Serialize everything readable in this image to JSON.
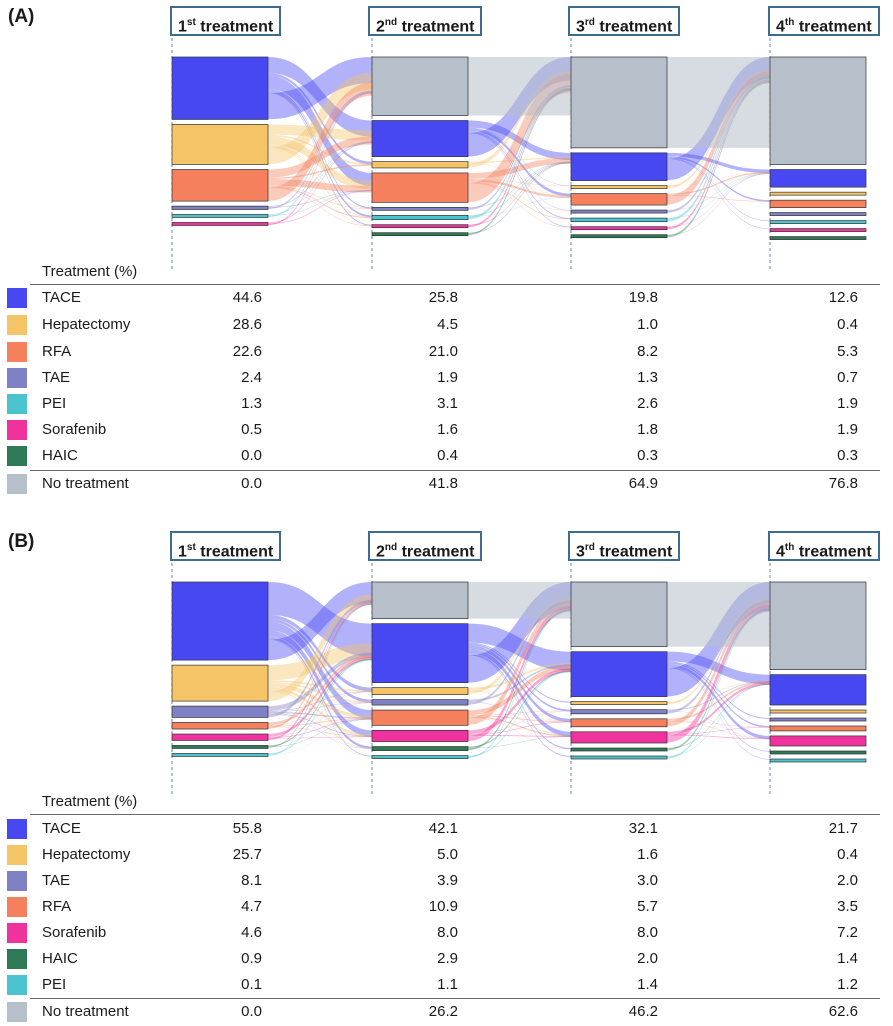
{
  "chart_data": [
    {
      "type": "sankey",
      "panel_label": "(A)",
      "stage_headers": [
        {
          "ordinal": "1",
          "suffix": "st",
          "text": "treatment"
        },
        {
          "ordinal": "2",
          "suffix": "nd",
          "text": "treatment"
        },
        {
          "ordinal": "3",
          "suffix": "rd",
          "text": "treatment"
        },
        {
          "ordinal": "4",
          "suffix": "th",
          "text": "treatment"
        }
      ],
      "table_header": "Treatment (%)",
      "rows": [
        {
          "label": "TACE",
          "color": "#4848f2",
          "values": [
            "44.6",
            "25.8",
            "19.8",
            "12.6"
          ]
        },
        {
          "label": "Hepatectomy",
          "color": "#f4c466",
          "values": [
            "28.6",
            "4.5",
            "1.0",
            "0.4"
          ]
        },
        {
          "label": "RFA",
          "color": "#f4805e",
          "values": [
            "22.6",
            "21.0",
            "8.2",
            "5.3"
          ]
        },
        {
          "label": "TAE",
          "color": "#8080c4",
          "values": [
            "2.4",
            "1.9",
            "1.3",
            "0.7"
          ]
        },
        {
          "label": "PEI",
          "color": "#4cc4d0",
          "values": [
            "1.3",
            "3.1",
            "2.6",
            "1.9"
          ]
        },
        {
          "label": "Sorafenib",
          "color": "#f0329e",
          "values": [
            "0.5",
            "1.6",
            "1.8",
            "1.9"
          ]
        },
        {
          "label": "HAIC",
          "color": "#2e7a56",
          "values": [
            "0.0",
            "0.4",
            "0.3",
            "0.3"
          ]
        },
        {
          "label": "No treatment",
          "color": "#b7bfca",
          "values": [
            "0.0",
            "41.8",
            "64.9",
            "76.8"
          ]
        }
      ]
    },
    {
      "type": "sankey",
      "panel_label": "(B)",
      "stage_headers": [
        {
          "ordinal": "1",
          "suffix": "st",
          "text": "treatment"
        },
        {
          "ordinal": "2",
          "suffix": "nd",
          "text": "treatment"
        },
        {
          "ordinal": "3",
          "suffix": "rd",
          "text": "treatment"
        },
        {
          "ordinal": "4",
          "suffix": "th",
          "text": "treatment"
        }
      ],
      "table_header": "Treatment (%)",
      "rows": [
        {
          "label": "TACE",
          "color": "#4848f2",
          "values": [
            "55.8",
            "42.1",
            "32.1",
            "21.7"
          ]
        },
        {
          "label": "Hepatectomy",
          "color": "#f4c466",
          "values": [
            "25.7",
            "5.0",
            "1.6",
            "0.4"
          ]
        },
        {
          "label": "TAE",
          "color": "#8080c4",
          "values": [
            "8.1",
            "3.9",
            "3.0",
            "2.0"
          ]
        },
        {
          "label": "RFA",
          "color": "#f4805e",
          "values": [
            "4.7",
            "10.9",
            "5.7",
            "3.5"
          ]
        },
        {
          "label": "Sorafenib",
          "color": "#f0329e",
          "values": [
            "4.6",
            "8.0",
            "8.0",
            "7.2"
          ]
        },
        {
          "label": "HAIC",
          "color": "#2e7a56",
          "values": [
            "0.9",
            "2.9",
            "2.0",
            "1.4"
          ]
        },
        {
          "label": "PEI",
          "color": "#4cc4d0",
          "values": [
            "0.1",
            "1.1",
            "1.4",
            "1.2"
          ]
        },
        {
          "label": "No treatment",
          "color": "#b7bfca",
          "values": [
            "0.0",
            "26.2",
            "46.2",
            "62.6"
          ]
        }
      ]
    }
  ]
}
